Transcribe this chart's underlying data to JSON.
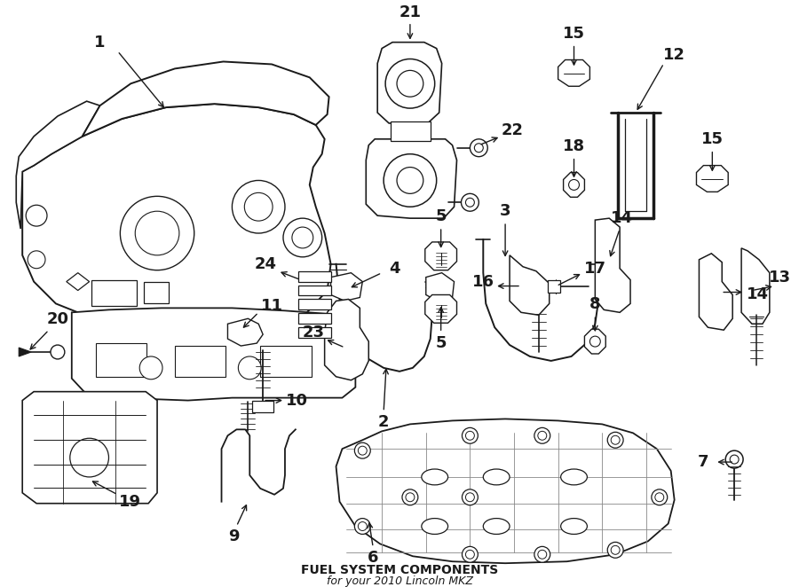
{
  "title": "FUEL SYSTEM COMPONENTS",
  "subtitle": "for your 2010 Lincoln MKZ",
  "bg_color": "#ffffff",
  "line_color": "#1a1a1a",
  "label_fontsize": 13,
  "label_fontweight": "bold"
}
